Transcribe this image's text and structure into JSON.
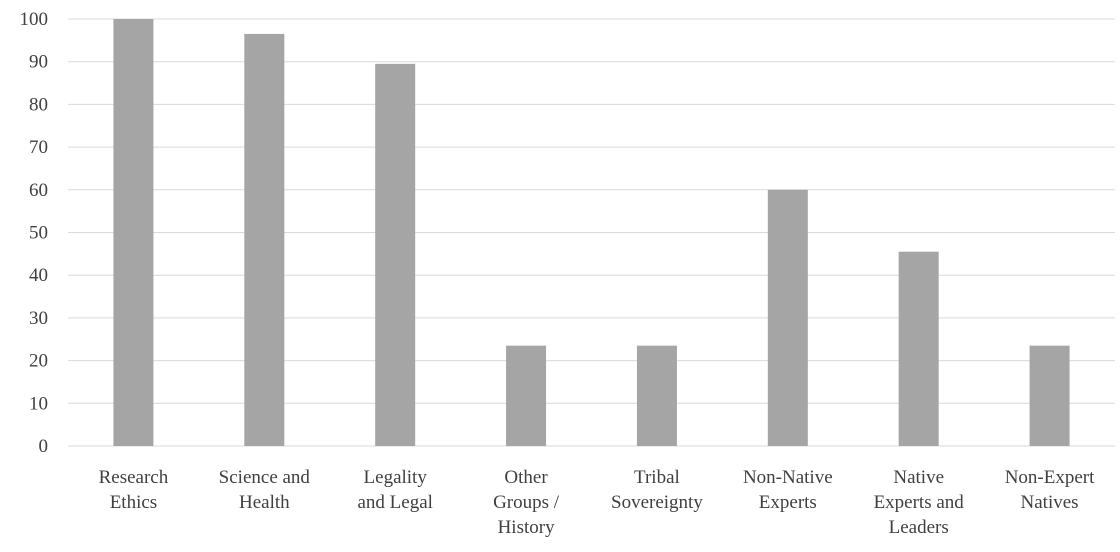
{
  "chart_data": {
    "type": "bar",
    "title": "",
    "xlabel": "",
    "ylabel": "",
    "ylim": [
      0,
      100
    ],
    "yticks": [
      0,
      10,
      20,
      30,
      40,
      50,
      60,
      70,
      80,
      90,
      100
    ],
    "grid": true,
    "legend": "none",
    "bar_color": "#a5a5a5",
    "grid_color": "#d9d9d9",
    "text_color": "#404040",
    "categories": [
      [
        "Research",
        "Ethics"
      ],
      [
        "Science and",
        "Health"
      ],
      [
        "Legality",
        "and Legal"
      ],
      [
        "Other",
        "Groups /",
        "History"
      ],
      [
        "Tribal",
        "Sovereignty"
      ],
      [
        "Non-Native",
        "Experts"
      ],
      [
        "Native",
        "Experts and",
        "Leaders"
      ],
      [
        "Non-Expert",
        "Natives"
      ]
    ],
    "values": [
      100,
      96.5,
      89.5,
      23.5,
      23.5,
      60,
      45.5,
      23.5
    ]
  }
}
